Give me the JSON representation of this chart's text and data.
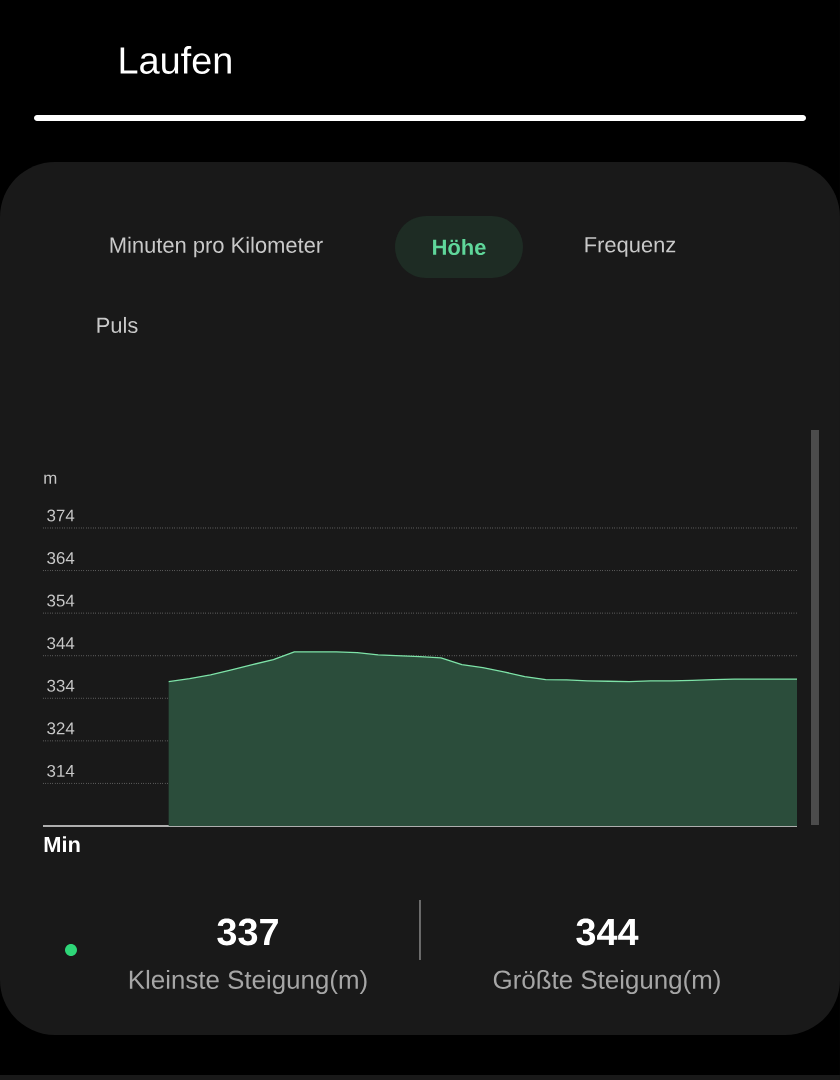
{
  "chart_data": {
    "type": "area",
    "title": "Laufen",
    "xlabel": "Min",
    "ylabel": "m",
    "annotations": [
      "Minuten pro Kilometer",
      "Höhe",
      "Frequenz",
      "Puls",
      "337",
      "Kleinste Steigung(m)",
      "344",
      "Größte Steigung(m)"
    ],
    "categories": [
      null,
      null,
      null,
      null,
      null,
      null,
      null,
      null,
      null,
      null,
      null,
      null,
      null,
      null,
      null,
      null,
      null,
      null,
      null,
      null,
      null,
      null,
      null,
      null,
      null,
      null,
      null,
      null,
      null,
      null,
      null,
      null,
      null,
      null,
      null,
      null,
      null
    ],
    "values": [
      null,
      null,
      null,
      null,
      null,
      null,
      337.9,
      338.6,
      339.5,
      340.7,
      341.9,
      343.1,
      344.9,
      344.9,
      344.9,
      344.7,
      344.2,
      344.0,
      343.8,
      343.5,
      341.9,
      341.2,
      340.2,
      339.1,
      338.4,
      338.3,
      338.1,
      338.0,
      337.9,
      338.1,
      338.1,
      338.2,
      338.4,
      338.5,
      338.5,
      338.5,
      338.5
    ],
    "color": "#7ee3a8",
    "ylim": [
      304,
      374
    ],
    "yticks": [
      314,
      324,
      334,
      344,
      354,
      364,
      374
    ],
    "grid": "y"
  }
}
